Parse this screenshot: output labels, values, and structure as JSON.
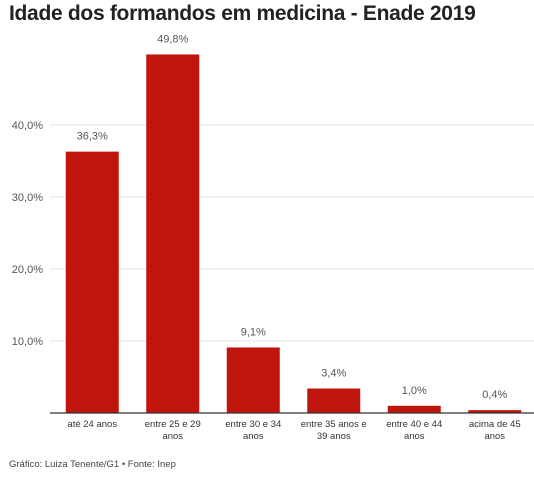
{
  "title": "Idade dos formandos em medicina - Enade 2019",
  "footer": "Gráfico: Luiza Tenente/G1 • Fonte: Inep",
  "chart_data": {
    "type": "bar",
    "title": "Idade dos formandos em medicina - Enade 2019",
    "categories": [
      [
        "até 24 anos"
      ],
      [
        "entre 25 e 29",
        "anos"
      ],
      [
        "entre 30 e 34",
        "anos"
      ],
      [
        "entre 35 anos e",
        "39 anos"
      ],
      [
        "entre 40 e 44",
        "anos"
      ],
      [
        "acima de 45",
        "anos"
      ]
    ],
    "values": [
      36.3,
      49.8,
      9.1,
      3.4,
      1.0,
      0.4
    ],
    "value_labels": [
      "36,3%",
      "49,8%",
      "9,1%",
      "3,4%",
      "1,0%",
      "0,4%"
    ],
    "y_ticks": [
      10,
      20,
      30,
      40
    ],
    "y_tick_labels": [
      "10,0%",
      "20,0%",
      "30,0%",
      "40,0%"
    ],
    "ylim": [
      0,
      50
    ],
    "grid": true,
    "bar_color": "#c0150d",
    "grid_color": "#e6e6e6",
    "axis_color": "#333333",
    "label_color": "#555555"
  }
}
